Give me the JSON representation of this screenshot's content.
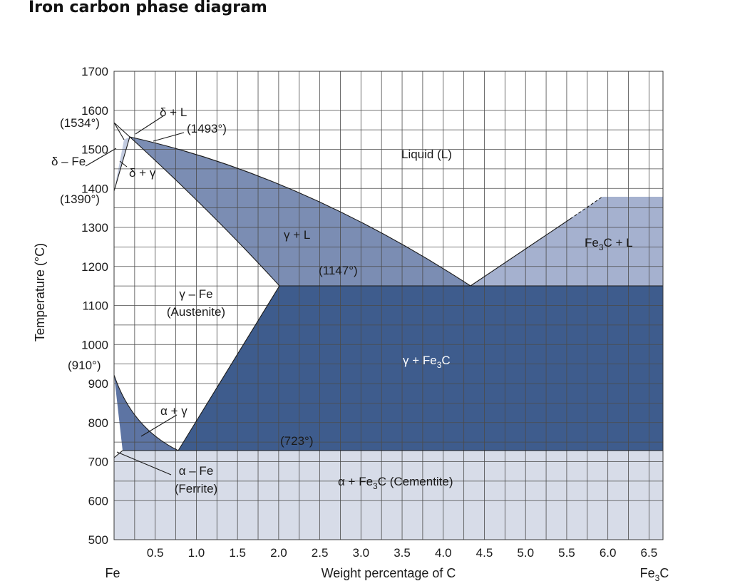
{
  "title": "Iron carbon phase diagram",
  "colors": {
    "liquid": "#ffffff",
    "gamma_plus_liquid": "#7b8db3",
    "fe3c_plus_liquid": "#a5b1cf",
    "gamma_plus_fe3c": "#3e5c8d",
    "alpha_plus_fe3c": "#d7dce8",
    "alpha_plus_gamma": "#5d74a3",
    "delta_plus_gamma": "#c2cbe0",
    "austenite": "#ffffff"
  },
  "axes": {
    "y_label": "Temperature (°C)",
    "x_label": "Weight percentage of C",
    "x_left_label": "Fe",
    "x_right_label": {
      "base": "Fe",
      "sub": "3",
      "tail": "C"
    },
    "y_ticks": [
      "1700",
      "1600",
      "1500",
      "1400",
      "1300",
      "1200",
      "1100",
      "1000",
      "900",
      "800",
      "700",
      "600",
      "500"
    ],
    "x_ticks": [
      "0.5",
      "1.0",
      "1.5",
      "2.0",
      "2.5",
      "3.0",
      "3.5",
      "4.0",
      "4.5",
      "5.0",
      "5.5",
      "6.0",
      "6.5"
    ]
  },
  "special_temps": {
    "t1534": "(1534°)",
    "t1493": "(1493°)",
    "t1390": "(1390°)",
    "t1147": "(1147°)",
    "t910": "(910°)",
    "t723": "(723°)"
  },
  "regions": {
    "liquid": "Liquid (L)",
    "delta_l": "δ + L",
    "delta_fe": "δ – Fe",
    "delta_gamma": "δ + γ",
    "gamma_l": "γ + L",
    "fe3c_l": {
      "base": "Fe",
      "sub": "3",
      "tail": "C + L"
    },
    "gamma_fe_1": "γ – Fe",
    "gamma_fe_2": "(Austenite)",
    "gamma_fe3c": {
      "base": "γ + Fe",
      "sub": "3",
      "tail": "C"
    },
    "alpha_gamma": "α + γ",
    "alpha_fe_1": "α – Fe",
    "alpha_fe_2": "(Ferrite)",
    "alpha_fe3c": {
      "base": "α + Fe",
      "sub": "3",
      "tail": "C (Cementite)"
    }
  }
}
